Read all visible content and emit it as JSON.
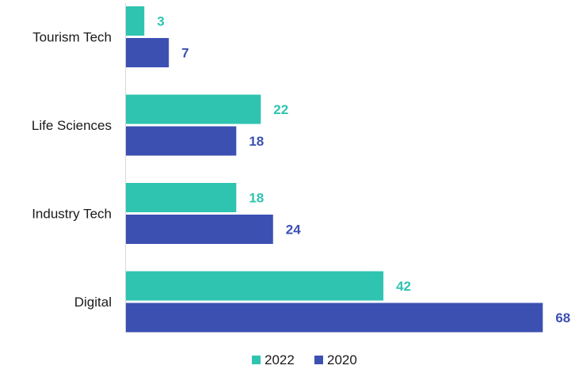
{
  "chart_data": {
    "type": "bar",
    "orientation": "horizontal",
    "categories": [
      "Tourism Tech",
      "Life Sciences",
      "Industry Tech",
      "Digital"
    ],
    "series": [
      {
        "name": "2022",
        "values": [
          3,
          22,
          18,
          42
        ],
        "color": "#2ec4b0"
      },
      {
        "name": "2020",
        "values": [
          7,
          18,
          24,
          68
        ],
        "color": "#3c50b2"
      }
    ],
    "xlim": [
      0,
      68
    ],
    "grid": false,
    "data_labels": true,
    "legend": "bottom-center"
  }
}
